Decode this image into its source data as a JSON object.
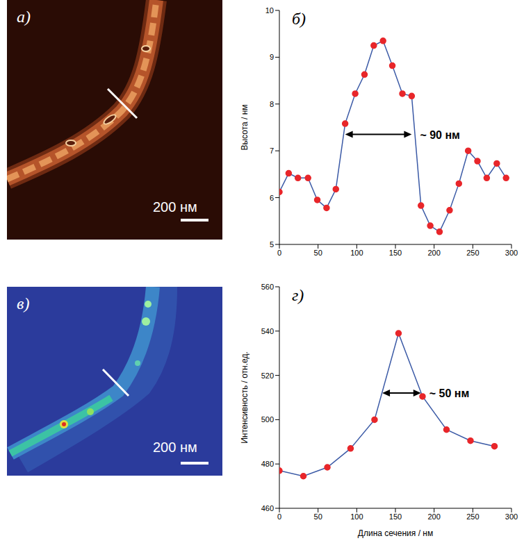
{
  "images": [
    {
      "label": "а)",
      "scale_bar": "200 нм"
    },
    {
      "label": "в)",
      "scale_bar": "200 нм"
    }
  ],
  "chart_data": [
    {
      "type": "line",
      "title": "б)",
      "x": [
        0,
        12,
        24,
        37,
        49,
        61,
        73,
        85,
        98,
        110,
        122,
        134,
        146,
        159,
        171,
        183,
        195,
        207,
        220,
        232,
        244,
        256,
        268,
        281,
        293
      ],
      "values": [
        6.12,
        6.52,
        6.42,
        6.42,
        5.95,
        5.78,
        6.18,
        7.58,
        8.22,
        8.63,
        9.25,
        9.35,
        8.82,
        8.22,
        8.17,
        5.83,
        5.4,
        5.27,
        5.73,
        6.3,
        7.0,
        6.78,
        6.42,
        6.73,
        6.42
      ],
      "color": "#3b5aa6",
      "marker": "circle",
      "xlim": [
        0,
        300
      ],
      "xticks": [
        0,
        50,
        100,
        150,
        200,
        250,
        300
      ],
      "ylim": [
        5,
        10
      ],
      "yticks": [
        5,
        6,
        7,
        8,
        9,
        10
      ],
      "y_label": "Высота / нм",
      "grid": false,
      "annotations": [
        {
          "text": "~ 90 нм",
          "x_start": 85,
          "x_end": 171,
          "y": 7.35
        }
      ]
    },
    {
      "type": "line",
      "title": "г)",
      "x": [
        0,
        31,
        62,
        92,
        123,
        154,
        185,
        216,
        247,
        278
      ],
      "values": [
        477,
        474.5,
        478.5,
        487,
        500,
        539,
        510.5,
        495.5,
        490.5,
        488
      ],
      "color": "#3b5aa6",
      "marker": "circle",
      "xlim": [
        0,
        300
      ],
      "xticks": [
        0,
        50,
        100,
        150,
        200,
        250,
        300
      ],
      "ylim": [
        460,
        560
      ],
      "yticks": [
        460,
        480,
        500,
        520,
        540,
        560
      ],
      "x_label": "Длина сечения / нм",
      "y_label": "Интенсивность / отн.ед.",
      "grid": false,
      "annotations": [
        {
          "text": "~ 50 нм",
          "x_start": 133,
          "x_end": 183,
          "y": 512
        }
      ]
    }
  ]
}
